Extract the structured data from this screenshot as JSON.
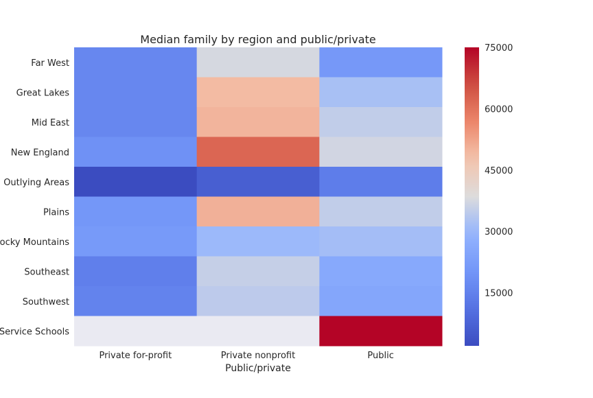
{
  "chart_data": {
    "type": "heatmap",
    "title": "Median family by region and public/private",
    "xlabel": "Public/private",
    "ylabel": "",
    "x_categories": [
      "Private for-profit",
      "Private nonprofit",
      "Public"
    ],
    "y_categories": [
      "Far West",
      "Great Lakes",
      "Mid East",
      "New England",
      "Outlying Areas",
      "Plains",
      "Rocky Mountains",
      "Southeast",
      "Southwest",
      "U.S. Service Schools"
    ],
    "values": [
      [
        16500,
        37500,
        21000
      ],
      [
        16500,
        49000,
        32000
      ],
      [
        16500,
        50000,
        35000
      ],
      [
        19000,
        62000,
        37000
      ],
      [
        2000,
        6500,
        14000
      ],
      [
        20500,
        50500,
        35000
      ],
      [
        21500,
        30500,
        31500
      ],
      [
        14500,
        35500,
        26000
      ],
      [
        15500,
        34500,
        25000
      ],
      [
        null,
        null,
        75000
      ]
    ],
    "colorscale": "coolwarm",
    "missing_color": "#EAEAF2",
    "colorbar": {
      "min": 2000,
      "max": 75000,
      "ticks": [
        15000,
        30000,
        45000,
        60000,
        75000
      ],
      "tick_labels": [
        "15000",
        "30000",
        "45000",
        "60000",
        "75000"
      ]
    }
  }
}
